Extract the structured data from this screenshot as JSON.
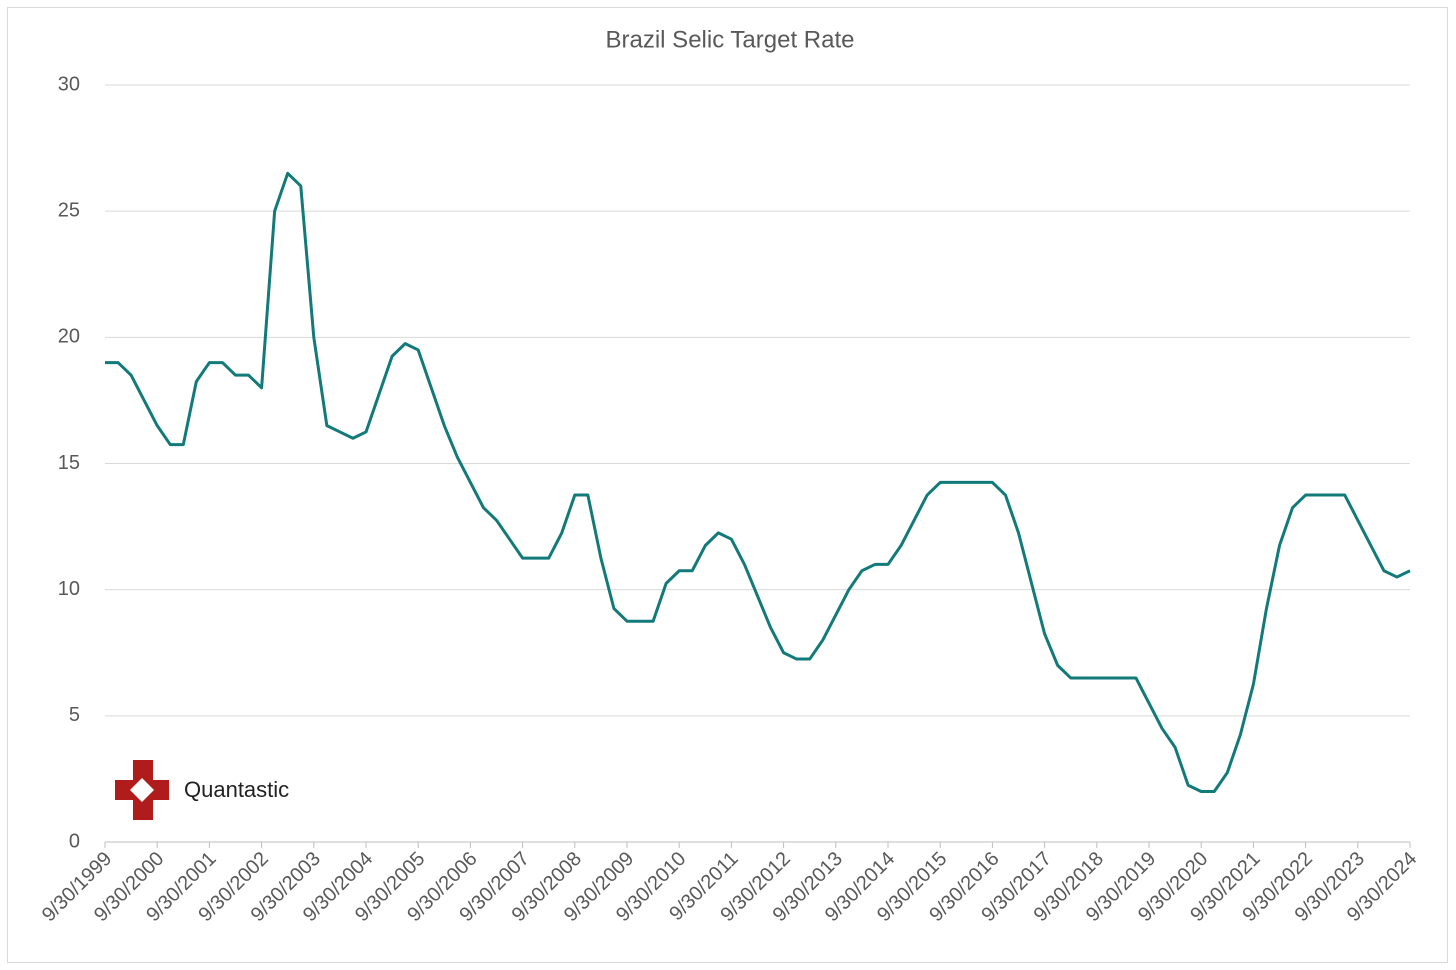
{
  "chart_data": {
    "type": "line",
    "title": "Brazil Selic Target Rate",
    "watermark": "Quantastic",
    "categories": [
      "9/30/1999",
      null,
      null,
      null,
      "9/30/2000",
      null,
      null,
      null,
      "9/30/2001",
      null,
      null,
      null,
      "9/30/2002",
      null,
      null,
      null,
      "9/30/2003",
      null,
      null,
      null,
      "9/30/2004",
      null,
      null,
      null,
      "9/30/2005",
      null,
      null,
      null,
      "9/30/2006",
      null,
      null,
      null,
      "9/30/2007",
      null,
      null,
      null,
      "9/30/2008",
      null,
      null,
      null,
      "9/30/2009",
      null,
      null,
      null,
      "9/30/2010",
      null,
      null,
      null,
      "9/30/2011",
      null,
      null,
      null,
      "9/30/2012",
      null,
      null,
      null,
      "9/30/2013",
      null,
      null,
      null,
      "9/30/2014",
      null,
      null,
      null,
      "9/30/2015",
      null,
      null,
      null,
      "9/30/2016",
      null,
      null,
      null,
      "9/30/2017",
      null,
      null,
      null,
      "9/30/2018",
      null,
      null,
      null,
      "9/30/2019",
      null,
      null,
      null,
      "9/30/2020",
      null,
      null,
      null,
      "9/30/2021",
      null,
      null,
      null,
      "9/30/2022",
      null,
      null,
      null,
      "9/30/2023",
      null,
      null,
      null,
      "9/30/2024"
    ],
    "series": [
      {
        "name": "Selic Target Rate",
        "color": "#137a7a",
        "values": [
          19,
          19,
          18.5,
          17.5,
          16.5,
          15.75,
          15.75,
          18.25,
          19,
          19,
          18.5,
          18.5,
          18,
          25,
          26.5,
          26,
          20,
          16.5,
          16.25,
          16,
          16.25,
          17.75,
          19.25,
          19.75,
          19.5,
          18,
          16.5,
          15.25,
          14.25,
          13.25,
          12.75,
          12,
          11.25,
          11.25,
          11.25,
          12.25,
          13.75,
          13.75,
          11.25,
          9.25,
          8.75,
          8.75,
          8.75,
          10.25,
          10.75,
          10.75,
          11.75,
          12.25,
          12,
          11,
          9.75,
          8.5,
          7.5,
          7.25,
          7.25,
          8,
          9,
          10,
          10.75,
          11,
          11,
          11.75,
          12.75,
          13.75,
          14.25,
          14.25,
          14.25,
          14.25,
          14.25,
          13.75,
          12.25,
          10.25,
          8.25,
          7,
          6.5,
          6.5,
          6.5,
          6.5,
          6.5,
          6.5,
          5.5,
          4.5,
          3.75,
          2.25,
          2,
          2,
          2.75,
          4.25,
          6.25,
          9.25,
          11.75,
          13.25,
          13.75,
          13.75,
          13.75,
          13.75,
          12.75,
          11.75,
          10.75,
          10.5,
          10.75
        ]
      }
    ],
    "ylim": [
      0,
      30
    ],
    "yticks": [
      0,
      5,
      10,
      15,
      20,
      25,
      30
    ],
    "grid": true,
    "legend": false
  }
}
